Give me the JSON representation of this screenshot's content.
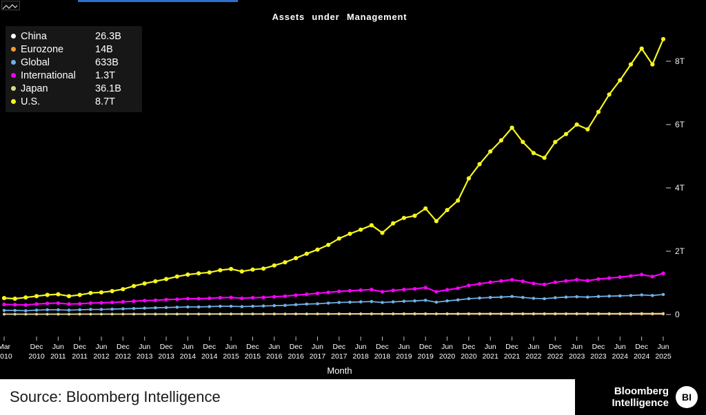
{
  "toolbar": {
    "chart_icon": "line-chart-icon"
  },
  "chart_data": {
    "type": "line",
    "title": "Assets under Management",
    "xlabel": "Month",
    "ylim": [
      0,
      9
    ],
    "x_start": "2010-03",
    "x_end": "2025-06",
    "x_step": "quarter",
    "grid": false,
    "legend_position": "top-left",
    "y_ticks": [
      {
        "v": 0,
        "label": "0"
      },
      {
        "v": 2,
        "label": "2T"
      },
      {
        "v": 4,
        "label": "4T"
      },
      {
        "v": 6,
        "label": "6T"
      },
      {
        "v": 8,
        "label": "8T"
      }
    ],
    "x_ticks": [
      {
        "month": "Mar",
        "year": "2010",
        "q": 0
      },
      {
        "month": "Dec",
        "year": "2010",
        "q": 3
      },
      {
        "month": "Jun",
        "year": "2011",
        "q": 5
      },
      {
        "month": "Dec",
        "year": "2011",
        "q": 7
      },
      {
        "month": "Jun",
        "year": "2012",
        "q": 9
      },
      {
        "month": "Dec",
        "year": "2012",
        "q": 11
      },
      {
        "month": "Jun",
        "year": "2013",
        "q": 13
      },
      {
        "month": "Dec",
        "year": "2013",
        "q": 15
      },
      {
        "month": "Jun",
        "year": "2014",
        "q": 17
      },
      {
        "month": "Dec",
        "year": "2014",
        "q": 19
      },
      {
        "month": "Jun",
        "year": "2015",
        "q": 21
      },
      {
        "month": "Dec",
        "year": "2015",
        "q": 23
      },
      {
        "month": "Jun",
        "year": "2016",
        "q": 25
      },
      {
        "month": "Dec",
        "year": "2016",
        "q": 27
      },
      {
        "month": "Jun",
        "year": "2017",
        "q": 29
      },
      {
        "month": "Dec",
        "year": "2017",
        "q": 31
      },
      {
        "month": "Jun",
        "year": "2018",
        "q": 33
      },
      {
        "month": "Dec",
        "year": "2018",
        "q": 35
      },
      {
        "month": "Jun",
        "year": "2019",
        "q": 37
      },
      {
        "month": "Dec",
        "year": "2019",
        "q": 39
      },
      {
        "month": "Jun",
        "year": "2020",
        "q": 41
      },
      {
        "month": "Dec",
        "year": "2020",
        "q": 43
      },
      {
        "month": "Jun",
        "year": "2021",
        "q": 45
      },
      {
        "month": "Dec",
        "year": "2021",
        "q": 47
      },
      {
        "month": "Jun",
        "year": "2022",
        "q": 49
      },
      {
        "month": "Dec",
        "year": "2022",
        "q": 51
      },
      {
        "month": "Jun",
        "year": "2023",
        "q": 53
      },
      {
        "month": "Dec",
        "year": "2023",
        "q": 55
      },
      {
        "month": "Jun",
        "year": "2024",
        "q": 57
      },
      {
        "month": "Dec",
        "year": "2024",
        "q": 59
      },
      {
        "month": "Jun",
        "year": "2025",
        "q": 61
      }
    ],
    "series": [
      {
        "name": "China",
        "display_value": "26.3B",
        "color": "#ffffff",
        "values": [
          0.01,
          0.01,
          0.01,
          0.011,
          0.011,
          0.011,
          0.011,
          0.012,
          0.012,
          0.012,
          0.012,
          0.013,
          0.013,
          0.013,
          0.014,
          0.014,
          0.014,
          0.015,
          0.015,
          0.015,
          0.016,
          0.016,
          0.016,
          0.017,
          0.017,
          0.017,
          0.018,
          0.018,
          0.018,
          0.019,
          0.019,
          0.019,
          0.02,
          0.02,
          0.02,
          0.02,
          0.021,
          0.021,
          0.021,
          0.022,
          0.021,
          0.022,
          0.022,
          0.023,
          0.023,
          0.023,
          0.024,
          0.024,
          0.023,
          0.023,
          0.024,
          0.024,
          0.024,
          0.025,
          0.025,
          0.025,
          0.025,
          0.026,
          0.026,
          0.026,
          0.026,
          0.0263
        ]
      },
      {
        "name": "Eurozone",
        "display_value": "14B",
        "color": "#ff9933",
        "values": [
          0.006,
          0.006,
          0.006,
          0.006,
          0.007,
          0.007,
          0.007,
          0.007,
          0.007,
          0.008,
          0.008,
          0.008,
          0.008,
          0.008,
          0.009,
          0.009,
          0.009,
          0.009,
          0.009,
          0.01,
          0.01,
          0.01,
          0.01,
          0.01,
          0.01,
          0.011,
          0.011,
          0.011,
          0.011,
          0.011,
          0.011,
          0.012,
          0.012,
          0.012,
          0.012,
          0.012,
          0.012,
          0.012,
          0.013,
          0.013,
          0.012,
          0.013,
          0.013,
          0.013,
          0.013,
          0.013,
          0.013,
          0.013,
          0.013,
          0.013,
          0.013,
          0.013,
          0.013,
          0.014,
          0.014,
          0.014,
          0.014,
          0.014,
          0.014,
          0.014,
          0.014,
          0.014
        ]
      },
      {
        "name": "Global",
        "display_value": "633B",
        "color": "#6fb0e8",
        "values": [
          0.13,
          0.13,
          0.12,
          0.14,
          0.15,
          0.15,
          0.14,
          0.15,
          0.16,
          0.16,
          0.17,
          0.18,
          0.19,
          0.2,
          0.21,
          0.22,
          0.23,
          0.24,
          0.24,
          0.25,
          0.26,
          0.26,
          0.25,
          0.26,
          0.27,
          0.28,
          0.29,
          0.31,
          0.33,
          0.34,
          0.36,
          0.38,
          0.39,
          0.4,
          0.41,
          0.38,
          0.4,
          0.42,
          0.43,
          0.45,
          0.39,
          0.43,
          0.46,
          0.5,
          0.52,
          0.54,
          0.55,
          0.57,
          0.54,
          0.51,
          0.5,
          0.53,
          0.55,
          0.56,
          0.55,
          0.57,
          0.58,
          0.59,
          0.6,
          0.62,
          0.6,
          0.633
        ]
      },
      {
        "name": "International",
        "display_value": "1.3T",
        "color": "#f500f5",
        "values": [
          0.32,
          0.31,
          0.3,
          0.33,
          0.35,
          0.36,
          0.33,
          0.34,
          0.36,
          0.37,
          0.38,
          0.4,
          0.42,
          0.44,
          0.45,
          0.47,
          0.48,
          0.5,
          0.5,
          0.51,
          0.53,
          0.54,
          0.51,
          0.53,
          0.54,
          0.56,
          0.58,
          0.61,
          0.64,
          0.67,
          0.7,
          0.73,
          0.75,
          0.77,
          0.79,
          0.72,
          0.76,
          0.79,
          0.81,
          0.85,
          0.72,
          0.78,
          0.83,
          0.92,
          0.97,
          1.02,
          1.06,
          1.1,
          1.05,
          0.98,
          0.95,
          1.02,
          1.06,
          1.1,
          1.07,
          1.12,
          1.15,
          1.18,
          1.22,
          1.26,
          1.2,
          1.3
        ]
      },
      {
        "name": "Japan",
        "display_value": "36.1B",
        "color": "#d9d98a",
        "values": [
          0.015,
          0.015,
          0.015,
          0.016,
          0.016,
          0.016,
          0.016,
          0.017,
          0.017,
          0.017,
          0.018,
          0.018,
          0.019,
          0.019,
          0.02,
          0.02,
          0.021,
          0.021,
          0.022,
          0.022,
          0.023,
          0.023,
          0.023,
          0.024,
          0.024,
          0.025,
          0.025,
          0.026,
          0.026,
          0.027,
          0.027,
          0.028,
          0.028,
          0.028,
          0.029,
          0.028,
          0.029,
          0.03,
          0.03,
          0.031,
          0.029,
          0.03,
          0.031,
          0.032,
          0.032,
          0.033,
          0.033,
          0.034,
          0.033,
          0.032,
          0.032,
          0.033,
          0.033,
          0.034,
          0.034,
          0.034,
          0.035,
          0.035,
          0.035,
          0.036,
          0.035,
          0.036
        ]
      },
      {
        "name": "U.S.",
        "display_value": "8.7T",
        "color": "#f7f71e",
        "values": [
          0.52,
          0.5,
          0.54,
          0.58,
          0.62,
          0.64,
          0.58,
          0.62,
          0.68,
          0.7,
          0.74,
          0.8,
          0.9,
          0.98,
          1.05,
          1.12,
          1.2,
          1.26,
          1.3,
          1.33,
          1.4,
          1.44,
          1.36,
          1.42,
          1.45,
          1.55,
          1.65,
          1.78,
          1.92,
          2.05,
          2.2,
          2.4,
          2.55,
          2.68,
          2.82,
          2.58,
          2.88,
          3.05,
          3.12,
          3.35,
          2.95,
          3.3,
          3.6,
          4.3,
          4.75,
          5.15,
          5.5,
          5.9,
          5.45,
          5.1,
          4.95,
          5.45,
          5.7,
          6.0,
          5.85,
          6.4,
          6.95,
          7.4,
          7.9,
          8.4,
          7.9,
          8.7
        ]
      }
    ]
  },
  "footer": {
    "source": "Source: Bloomberg Intelligence",
    "logo_line1": "Bloomberg",
    "logo_line2": "Intelligence",
    "bi_badge": "BI"
  }
}
